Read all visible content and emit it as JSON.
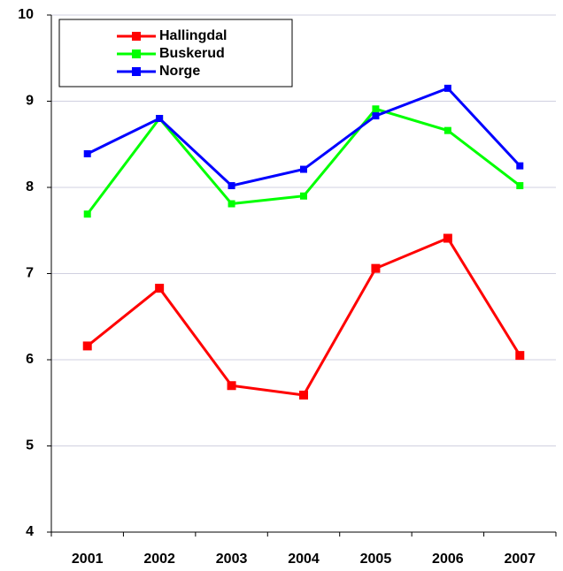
{
  "chart_data": {
    "type": "line",
    "categories": [
      "2001",
      "2002",
      "2003",
      "2004",
      "2005",
      "2006",
      "2007"
    ],
    "series": [
      {
        "name": "Hallingdal",
        "color": "#ff0000",
        "values": [
          6.16,
          6.83,
          5.7,
          5.59,
          7.06,
          7.41,
          6.05
        ]
      },
      {
        "name": "Buskerud",
        "color": "#00ff00",
        "values": [
          7.69,
          8.8,
          7.81,
          7.9,
          8.91,
          8.66,
          8.02
        ]
      },
      {
        "name": "Norge",
        "color": "#0000ff",
        "values": [
          8.39,
          8.8,
          8.02,
          8.21,
          8.83,
          9.15,
          8.25
        ]
      }
    ],
    "ylim": [
      4,
      10
    ],
    "yticks": [
      4,
      5,
      6,
      7,
      8,
      9,
      10
    ],
    "grid": true,
    "legend": "top-left"
  }
}
